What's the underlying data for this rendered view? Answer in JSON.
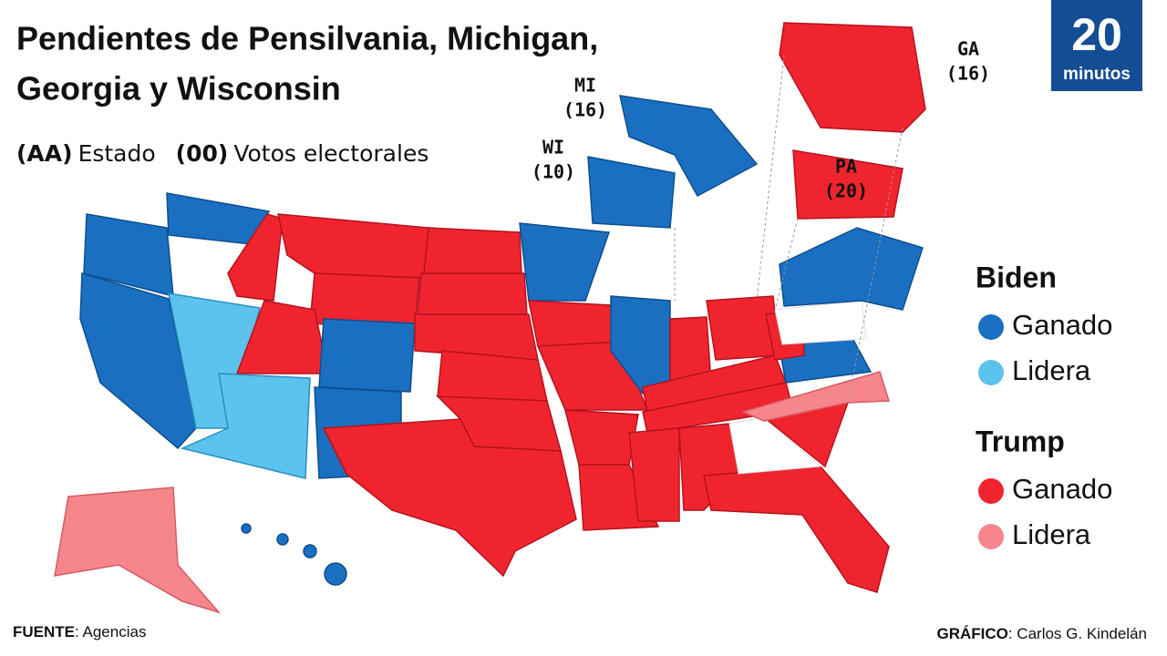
{
  "title": [
    "Pendientes de Pensilvania, Michigan,",
    "Georgia y Wisconsin"
  ],
  "key": {
    "state_code": "(AA)",
    "state_text": "Estado",
    "votes_code": "(00)",
    "votes_text": "Votos electorales"
  },
  "logo": {
    "number": "20",
    "text": "minutos"
  },
  "callouts": [
    {
      "state": "MI",
      "votes": "(16)"
    },
    {
      "state": "WI",
      "votes": "(10)"
    },
    {
      "state": "PA",
      "votes": "(20)"
    },
    {
      "state": "GA",
      "votes": "(16)"
    }
  ],
  "legend": [
    {
      "candidate": "Biden",
      "items": [
        {
          "label": "Ganado",
          "color": "#1a6fc0"
        },
        {
          "label": "Lidera",
          "color": "#5cc2ee"
        }
      ]
    },
    {
      "candidate": "Trump",
      "items": [
        {
          "label": "Ganado",
          "color": "#f0242f"
        },
        {
          "label": "Lidera",
          "color": "#f7868c"
        }
      ]
    }
  ],
  "footer": {
    "source_label": "FUENTE",
    "source": ": Agencias",
    "credit_label": "GRÁFICO",
    "credit": ": Carlos G. Kindelán"
  }
}
